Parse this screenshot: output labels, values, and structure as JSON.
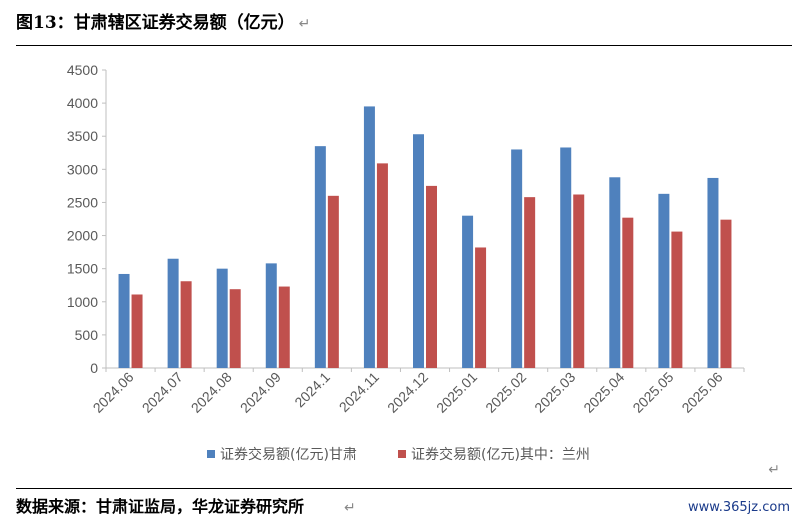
{
  "title": "图13：甘肃辖区证券交易额（亿元）",
  "source": "数据来源：甘肃证监局，华龙证券研究所",
  "watermark": "www.365jz.com",
  "return_mark": "↵",
  "chart_data": {
    "type": "bar",
    "categories": [
      "2024.06",
      "2024.07",
      "2024.08",
      "2024.09",
      "2024.1",
      "2024.11",
      "2024.12",
      "2025.01",
      "2025.02",
      "2025.03",
      "2025.04",
      "2025.05",
      "2025.06"
    ],
    "series": [
      {
        "name": "证券交易额(亿元)甘肃",
        "color": "#4f81bd",
        "values": [
          1420,
          1650,
          1500,
          1580,
          3350,
          3950,
          3530,
          2300,
          3300,
          3330,
          2880,
          2630,
          2870
        ]
      },
      {
        "name": "证券交易额(亿元)其中：兰州",
        "color": "#c0504d",
        "values": [
          1110,
          1310,
          1190,
          1230,
          2600,
          3090,
          2750,
          1820,
          2580,
          2620,
          2270,
          2060,
          2240
        ]
      }
    ],
    "yticks": [
      "0",
      "500",
      "1000",
      "1500",
      "2000",
      "2500",
      "3000",
      "3500",
      "4000",
      "4500"
    ],
    "ylim": [
      0,
      4500
    ],
    "grid": false,
    "legend_position": "bottom"
  }
}
